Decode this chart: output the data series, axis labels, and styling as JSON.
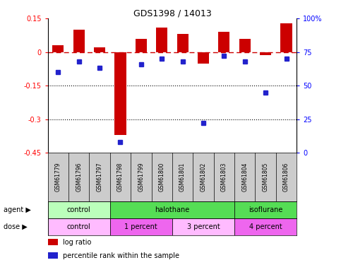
{
  "title": "GDS1398 / 14013",
  "samples": [
    "GSM61779",
    "GSM61796",
    "GSM61797",
    "GSM61798",
    "GSM61799",
    "GSM61800",
    "GSM61801",
    "GSM61802",
    "GSM61803",
    "GSM61804",
    "GSM61805",
    "GSM61806"
  ],
  "log_ratios": [
    0.03,
    0.1,
    0.02,
    -0.37,
    0.06,
    0.11,
    0.08,
    -0.05,
    0.09,
    0.06,
    -0.015,
    0.13
  ],
  "percentile_ranks": [
    60,
    68,
    63,
    8,
    66,
    70,
    68,
    22,
    72,
    68,
    45,
    70
  ],
  "ylim": [
    -0.45,
    0.15
  ],
  "yticks": [
    0.15,
    0.0,
    -0.15,
    -0.3,
    -0.45
  ],
  "ytick_labels": [
    "0.15",
    "0",
    "-0.15",
    "-0.3",
    "-0.45"
  ],
  "right_ytick_values": [
    100,
    75,
    50,
    25,
    0
  ],
  "right_ytick_labels": [
    "100%",
    "75",
    "50",
    "25",
    "0"
  ],
  "agent_groups": [
    {
      "label": "control",
      "start": 0,
      "end": 3
    },
    {
      "label": "halothane",
      "start": 3,
      "end": 9
    },
    {
      "label": "isoflurane",
      "start": 9,
      "end": 12
    }
  ],
  "agent_colors": [
    "#bbffbb",
    "#55dd55",
    "#55dd55"
  ],
  "dose_groups": [
    {
      "label": "control",
      "start": 0,
      "end": 3
    },
    {
      "label": "1 percent",
      "start": 3,
      "end": 6
    },
    {
      "label": "3 percent",
      "start": 6,
      "end": 9
    },
    {
      "label": "4 percent",
      "start": 9,
      "end": 12
    }
  ],
  "dose_colors": [
    "#ffbbff",
    "#ee66ee",
    "#ffbbff",
    "#ee66ee"
  ],
  "bar_color": "#cc0000",
  "dot_color": "#2222cc",
  "dashed_line_color": "#cc0000",
  "bg_color": "#ffffff",
  "sample_bg_color": "#cccccc",
  "bar_width": 0.55,
  "legend_items": [
    {
      "color": "#cc0000",
      "label": "log ratio"
    },
    {
      "color": "#2222cc",
      "label": "percentile rank within the sample"
    }
  ]
}
